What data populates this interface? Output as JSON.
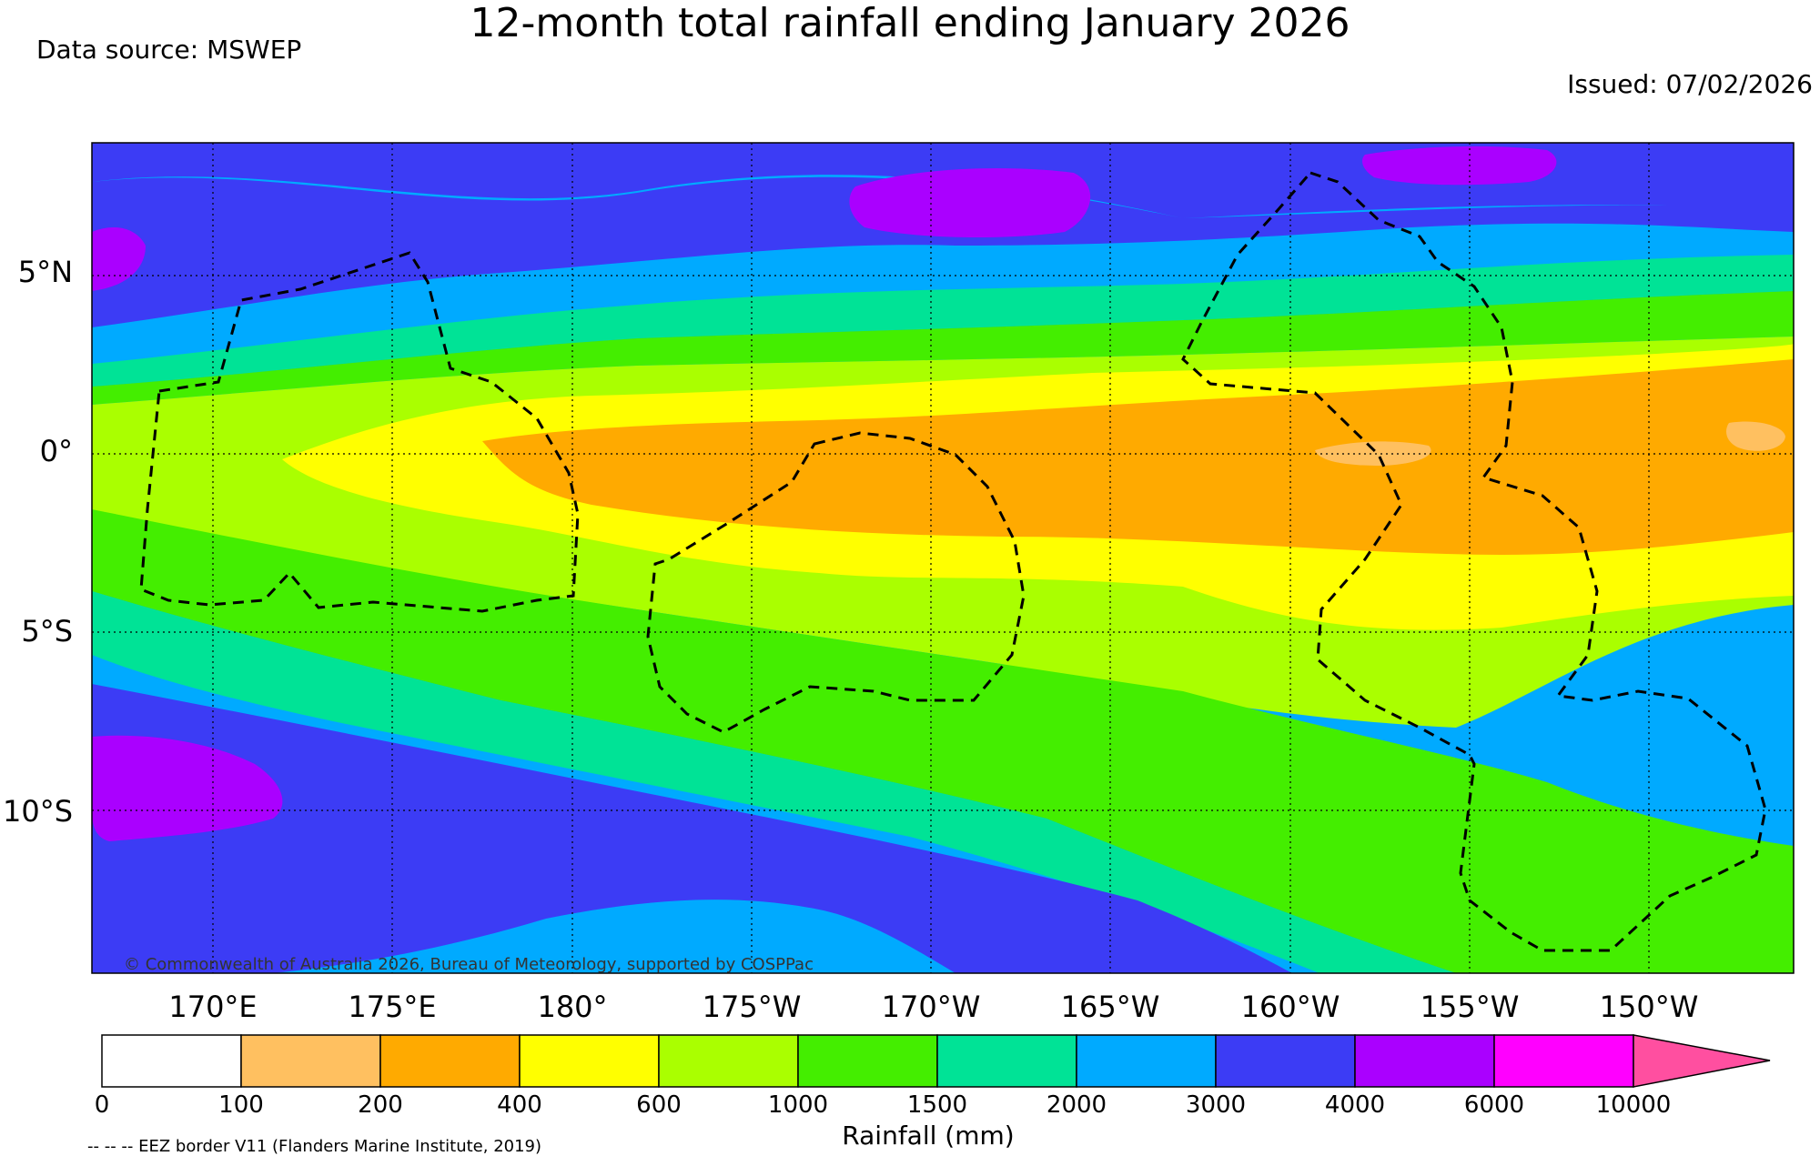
{
  "title": "12-month total rainfall ending January 2026",
  "data_source": "Data source: MSWEP",
  "issued": "Issued: 07/02/2026",
  "copyright": "© Commonwealth of Australia 2026, Bureau of Meteorology, supported by COSPPac",
  "lat_ticks": [
    "5°N",
    "0°",
    "5°S",
    "10°S"
  ],
  "lon_ticks": [
    "170°E",
    "175°E",
    "180°",
    "175°W",
    "170°W",
    "165°W",
    "160°W",
    "155°W",
    "150°W"
  ],
  "colorbar": {
    "title": "Rainfall (mm)",
    "labels": [
      "0",
      "100",
      "200",
      "400",
      "600",
      "1000",
      "1500",
      "2000",
      "3000",
      "4000",
      "6000",
      "10000"
    ],
    "colors": [
      "#ffffff",
      "#ffc060",
      "#ffaa00",
      "#ffff00",
      "#aaff00",
      "#44ee00",
      "#00e396",
      "#00aaff",
      "#3c3cf5",
      "#aa00ff",
      "#ff00ff",
      "#ff4fa0"
    ]
  },
  "eez_note": "-- -- -- EEZ border V11 (Flanders Marine Institute, 2019)",
  "bands": {
    "light_orange": "#ffc060",
    "orange": "#ffaa00",
    "yellow": "#ffff00",
    "yellow_green": "#aaff00",
    "green": "#44ee00",
    "teal": "#00e396",
    "sky_blue": "#00aaff",
    "blue": "#3c3cf5",
    "purple": "#aa00ff"
  }
}
